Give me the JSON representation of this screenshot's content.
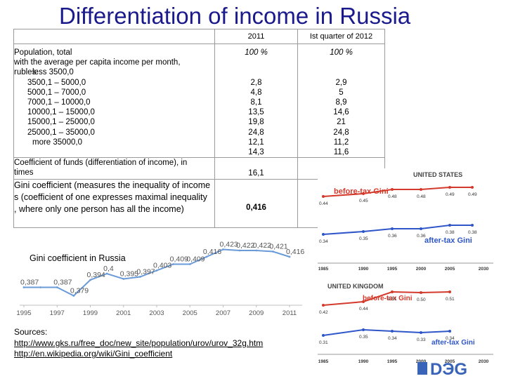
{
  "title": "Differentiation of  income in Russia",
  "table": {
    "col_2011": "2011",
    "col_2012": "Ist quarter of  2012",
    "population_label": "Population,  total",
    "population_desc": " with the average per capita income per month, rubles:",
    "population_2011": "100 %",
    "population_2012": "100 %",
    "brackets": [
      {
        "label": "less 3500,0",
        "v2011": "2,8",
        "v2012": "2,9"
      },
      {
        "label": "3500,1 – 5000,0",
        "v2011": "4,8",
        "v2012": "5"
      },
      {
        "label": "5000,1 – 7000,0",
        "v2011": "8,1",
        "v2012": "8,9"
      },
      {
        "label": "7000,1 – 10000,0",
        "v2011": "13,5",
        "v2012": "14,6"
      },
      {
        "label": "10000,1 – 15000,0",
        "v2011": "19,8",
        "v2012": "21"
      },
      {
        "label": "15000,1 – 25000,0",
        "v2011": "24,8",
        "v2012": "24,8"
      },
      {
        "label": "25000,1 – 35000,0",
        "v2011": "12,1",
        "v2012": "11,2"
      },
      {
        "label": "more 35000,0",
        "v2011": "14,3",
        "v2012": "11,6"
      }
    ],
    "funds_label": "Coefficient of funds (differentiation of  income), in times",
    "funds_2011": "16,1",
    "gini_label": "Gini coefficient (measures the inequality  of income  s (coefficient of one expresses maximal inequality , where only one person has all the income)",
    "gini_2011": "0,416"
  },
  "chart_data": {
    "type": "line",
    "title": "Gini coefficient  in Russia",
    "xlabel": "",
    "ylabel": "",
    "x": [
      1995,
      1996,
      1997,
      1998,
      1999,
      2000,
      2001,
      2002,
      2003,
      2004,
      2005,
      2006,
      2007,
      2008,
      2009,
      2010,
      2011
    ],
    "x_ticks": [
      "1995",
      "1997",
      "1999",
      "2001",
      "2003",
      "2005",
      "2007",
      "2009",
      "2011"
    ],
    "series": [
      {
        "values": [
          0.387,
          0.387,
          0.387,
          0.379,
          0.394,
          0.4,
          0.395,
          0.397,
          0.403,
          0.409,
          0.409,
          0.416,
          0.423,
          0.422,
          0.422,
          0.421,
          0.416
        ],
        "labels": [
          "0,387",
          "",
          "0,387",
          "0,379",
          "0,394",
          "0,4",
          "0,395",
          "0,397",
          "0,403",
          "0,409",
          "0,409",
          "0,416",
          "0,423",
          "0,422",
          "0,422",
          "0,421",
          "0,416"
        ]
      }
    ],
    "ylim": [
      0.37,
      0.43
    ],
    "grid": false,
    "line_color": "#6a9bd8",
    "label_color": "#555555"
  },
  "inset_us": {
    "title": "UNITED STATES",
    "before_label": "before-tax Gini",
    "after_label": "after-tax Gini",
    "x_ticks": [
      "1985",
      "1990",
      "1995",
      "2000",
      "2005",
      "2030"
    ],
    "before_values": [
      "0.44",
      "0.45",
      "0.48",
      "0.48",
      "0.49",
      "0.49"
    ],
    "after_values": [
      "0.34",
      "0.35",
      "0.36",
      "0.36",
      "0.38",
      "0.38"
    ],
    "before_color": "#d33a2c",
    "after_color": "#2f56c9"
  },
  "inset_uk": {
    "title": "UNITED KINGDOM",
    "before_label": "before-tax Gini",
    "after_label": "after-tax Gini",
    "x_ticks": [
      "1985",
      "1990",
      "1995",
      "2000",
      "2005",
      "2030"
    ],
    "before_values": [
      "0.42",
      "0.44",
      "0.51",
      "0.50",
      "0.51"
    ],
    "after_values": [
      "0.31",
      "0.35",
      "0.34",
      "0.33",
      "0.34"
    ]
  },
  "sources": {
    "label": "Sources:",
    "link1": "http://www.gks.ru/free_doc/new_site/population/urov/urov_32g.htm",
    "link2": "http://en.wikipedia.org/wiki/Gini_coefficient"
  },
  "logo_text": "DЭG"
}
